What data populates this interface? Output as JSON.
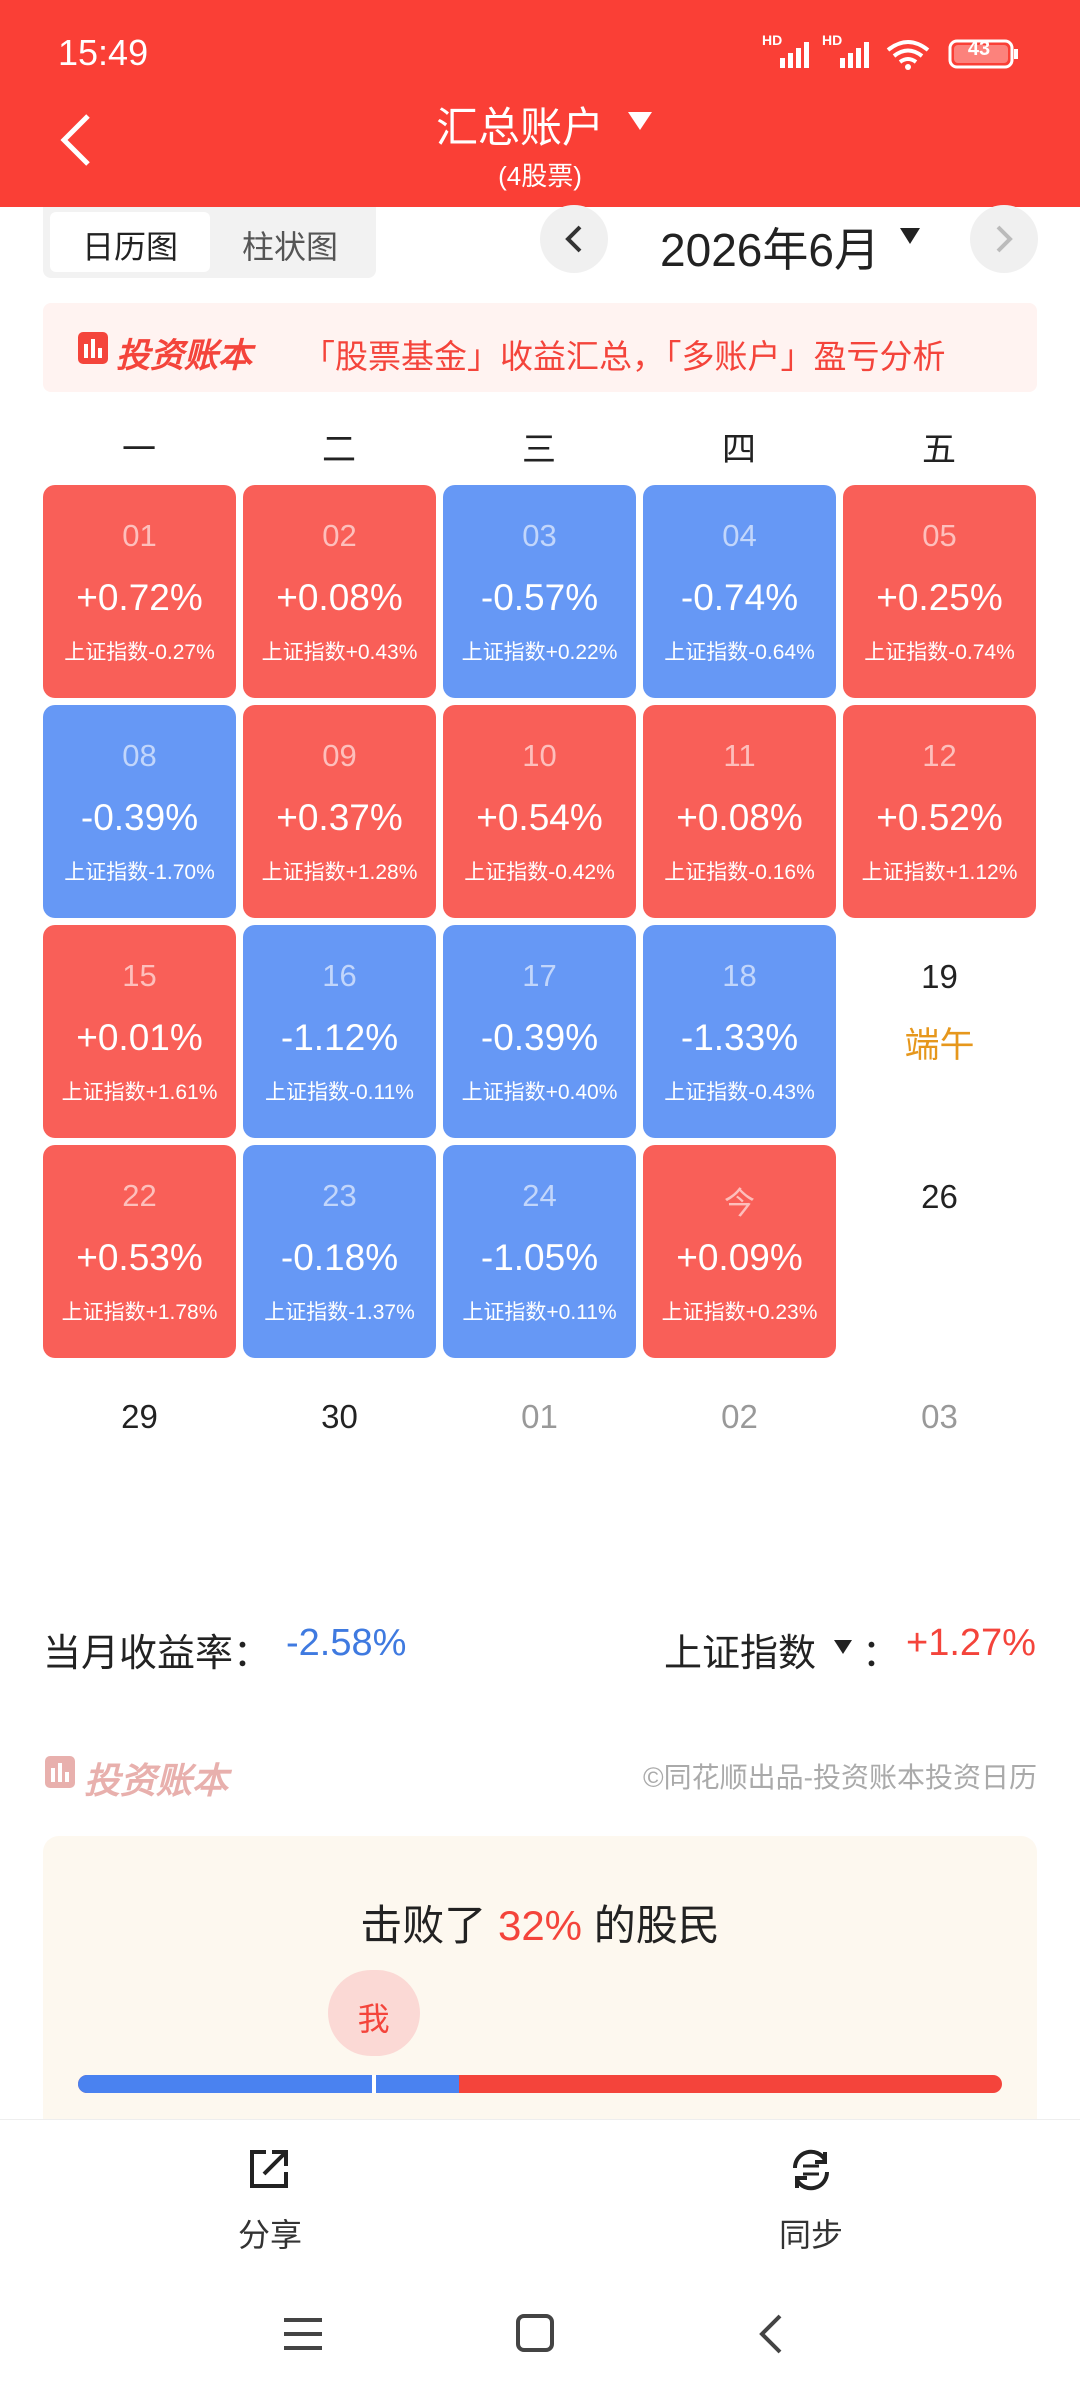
{
  "status_bar": {
    "time": "15:49",
    "network": [
      "HD",
      "HD"
    ],
    "battery": "43"
  },
  "header": {
    "title": "汇总账户",
    "subtitle": "(4股票)"
  },
  "tabs": [
    "日历图",
    "柱状图"
  ],
  "month": "2026年6月",
  "banner": {
    "brand": "投资账本",
    "text": "「股票基金」收益汇总，「多账户」盈亏分析"
  },
  "weekdays": [
    "一",
    "二",
    "三",
    "四",
    "五"
  ],
  "calendar": {
    "rise_color": "#f95f58",
    "fall_color": "#6698f5",
    "weeks": [
      [
        {
          "day": "01",
          "return": "+0.72%",
          "index": "上证指数-0.27%",
          "trend": "rise"
        },
        {
          "day": "02",
          "return": "+0.08%",
          "index": "上证指数+0.43%",
          "trend": "rise"
        },
        {
          "day": "03",
          "return": "-0.57%",
          "index": "上证指数+0.22%",
          "trend": "fall"
        },
        {
          "day": "04",
          "return": "-0.74%",
          "index": "上证指数-0.64%",
          "trend": "fall"
        },
        {
          "day": "05",
          "return": "+0.25%",
          "index": "上证指数-0.74%",
          "trend": "rise"
        }
      ],
      [
        {
          "day": "08",
          "return": "-0.39%",
          "index": "上证指数-1.70%",
          "trend": "fall"
        },
        {
          "day": "09",
          "return": "+0.37%",
          "index": "上证指数+1.28%",
          "trend": "rise"
        },
        {
          "day": "10",
          "return": "+0.54%",
          "index": "上证指数-0.42%",
          "trend": "rise"
        },
        {
          "day": "11",
          "return": "+0.08%",
          "index": "上证指数-0.16%",
          "trend": "rise"
        },
        {
          "day": "12",
          "return": "+0.52%",
          "index": "上证指数+1.12%",
          "trend": "rise"
        }
      ],
      [
        {
          "day": "15",
          "return": "+0.01%",
          "index": "上证指数+1.61%",
          "trend": "rise"
        },
        {
          "day": "16",
          "return": "-1.12%",
          "index": "上证指数-0.11%",
          "trend": "fall"
        },
        {
          "day": "17",
          "return": "-0.39%",
          "index": "上证指数+0.40%",
          "trend": "fall"
        },
        {
          "day": "18",
          "return": "-1.33%",
          "index": "上证指数-0.43%",
          "trend": "fall"
        },
        {
          "day": "19",
          "note": "端午"
        }
      ],
      [
        {
          "day": "22",
          "return": "+0.53%",
          "index": "上证指数+1.78%",
          "trend": "rise"
        },
        {
          "day": "23",
          "return": "-0.18%",
          "index": "上证指数-1.37%",
          "trend": "fall"
        },
        {
          "day": "24",
          "return": "-1.05%",
          "index": "上证指数+0.11%",
          "trend": "fall"
        },
        {
          "day": "今",
          "return": "+0.09%",
          "index": "上证指数+0.23%",
          "trend": "rise"
        },
        {
          "day": "26"
        }
      ],
      [
        {
          "day": "29"
        },
        {
          "day": "30"
        },
        {
          "day": "01",
          "outside": true
        },
        {
          "day": "02",
          "outside": true
        },
        {
          "day": "03",
          "outside": true
        }
      ]
    ]
  },
  "summary": {
    "label": "当月收益率：",
    "value": "-2.58%",
    "index_label": "上证指数",
    "separator": "：",
    "index_value": "+1.27%"
  },
  "footer": {
    "brand": "投资账本",
    "credit": "©同花顺出品-投资账本投资日历"
  },
  "ranking": {
    "prefix": "击败了",
    "percent": {
      "value": 32,
      "label": "32%"
    },
    "suffix": "的股民",
    "marker": "我"
  },
  "actions": [
    "分享",
    "同步"
  ]
}
